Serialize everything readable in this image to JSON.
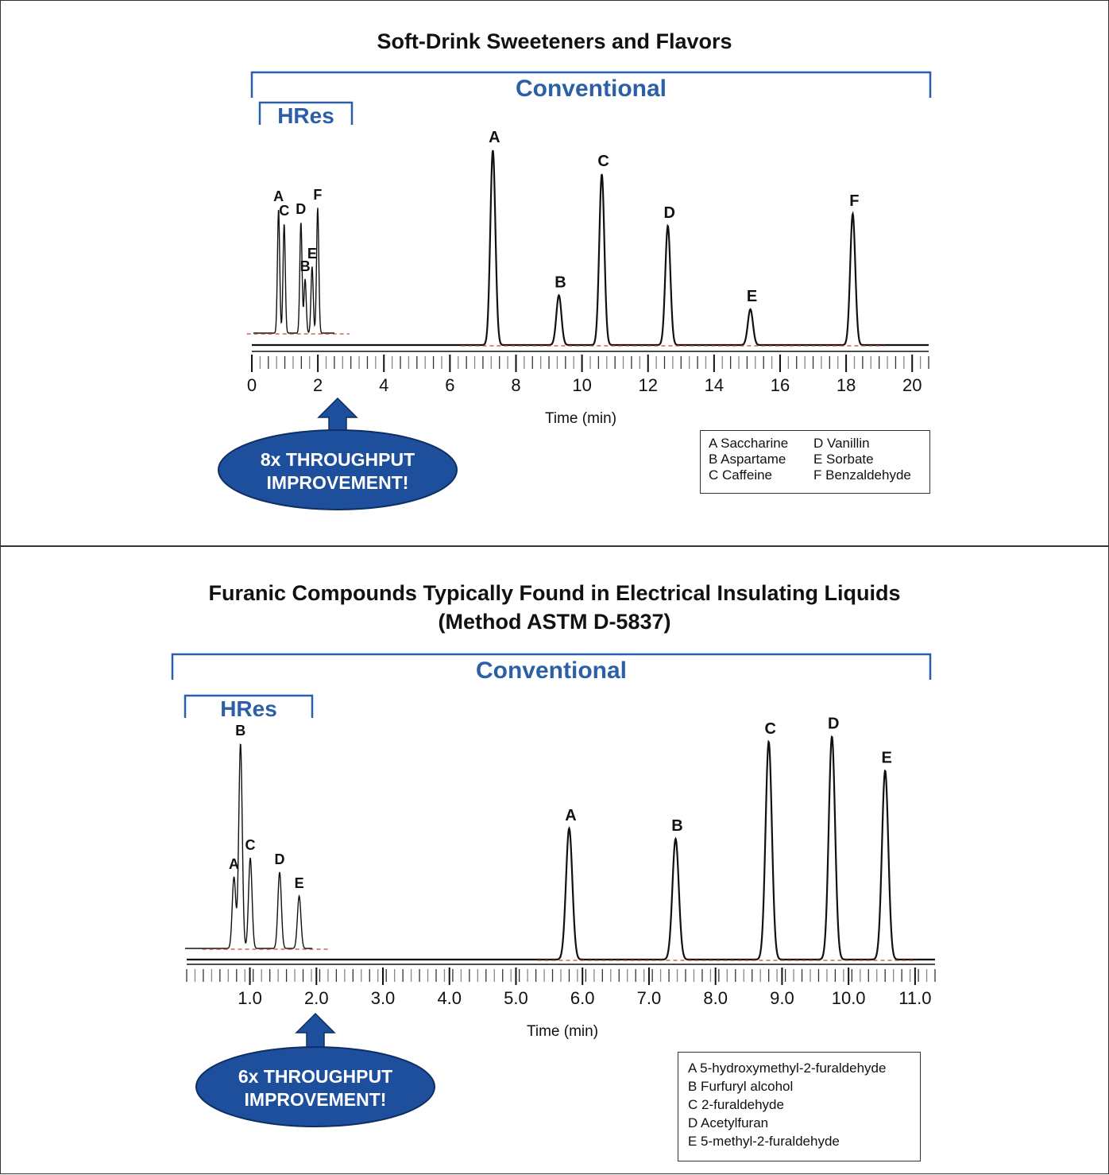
{
  "chart_data": [
    {
      "type": "line",
      "title": "Soft-Drink Sweeteners and Flavors",
      "xlabel": "Time (min)",
      "ylabel": "",
      "xlim": [
        0,
        20.5
      ],
      "x_ticks": [
        "0",
        "2",
        "4",
        "6",
        "8",
        "10",
        "12",
        "14",
        "16",
        "18",
        "20"
      ],
      "brackets": {
        "conventional": "Conventional",
        "hres": "HRes"
      },
      "series": [
        {
          "name": "Conventional",
          "peaks": [
            {
              "label": "A",
              "x": 7.3,
              "height": 0.98
            },
            {
              "label": "B",
              "x": 9.3,
              "height": 0.25
            },
            {
              "label": "C",
              "x": 10.6,
              "height": 0.86
            },
            {
              "label": "D",
              "x": 12.6,
              "height": 0.6
            },
            {
              "label": "E",
              "x": 15.1,
              "height": 0.18
            },
            {
              "label": "F",
              "x": 18.2,
              "height": 0.66
            }
          ]
        },
        {
          "name": "HRes",
          "peaks": [
            {
              "label": "A",
              "x": 0.9,
              "height": 0.78
            },
            {
              "label": "C",
              "x": 1.1,
              "height": 0.69
            },
            {
              "label": "D",
              "x": 1.7,
              "height": 0.7
            },
            {
              "label": "B",
              "x": 1.85,
              "height": 0.34
            },
            {
              "label": "E",
              "x": 2.1,
              "height": 0.42
            },
            {
              "label": "F",
              "x": 2.3,
              "height": 0.79
            }
          ]
        }
      ],
      "callout": [
        "8x THROUGHPUT",
        "IMPROVEMENT!"
      ],
      "legend_rows": [
        [
          "A Saccharine",
          "D Vanillin"
        ],
        [
          "B Aspartame",
          "E Sorbate"
        ],
        [
          "C Caffeine",
          "F Benzaldehyde"
        ]
      ]
    },
    {
      "type": "line",
      "title": "Furanic Compounds Typically Found in Electrical Insulating Liquids",
      "subtitle": "(Method ASTM D-5837)",
      "xlabel": "Time (min)",
      "ylabel": "",
      "xlim": [
        0.05,
        11.3
      ],
      "x_ticks": [
        "1.0",
        "2.0",
        "3.0",
        "4.0",
        "5.0",
        "6.0",
        "7.0",
        "8.0",
        "9.0",
        "10.0",
        "11.0"
      ],
      "brackets": {
        "conventional": "Conventional",
        "hres": "HRes"
      },
      "series": [
        {
          "name": "Conventional",
          "peaks": [
            {
              "label": "A",
              "x": 5.8,
              "height": 0.5
            },
            {
              "label": "B",
              "x": 7.4,
              "height": 0.46
            },
            {
              "label": "C",
              "x": 8.8,
              "height": 0.83
            },
            {
              "label": "D",
              "x": 9.75,
              "height": 0.85
            },
            {
              "label": "E",
              "x": 10.55,
              "height": 0.72
            }
          ]
        },
        {
          "name": "HRes",
          "peaks": [
            {
              "label": "A",
              "x": 0.8,
              "height": 0.3
            },
            {
              "label": "B",
              "x": 0.9,
              "height": 0.86
            },
            {
              "label": "C",
              "x": 1.05,
              "height": 0.38
            },
            {
              "label": "D",
              "x": 1.5,
              "height": 0.32
            },
            {
              "label": "E",
              "x": 1.8,
              "height": 0.22
            }
          ]
        }
      ],
      "callout": [
        "6x THROUGHPUT",
        "IMPROVEMENT!"
      ],
      "legend_rows": [
        [
          "A 5-hydroxymethyl-2-furaldehyde"
        ],
        [
          "B Furfuryl alcohol"
        ],
        [
          "C 2-furaldehyde"
        ],
        [
          "D Acetylfuran"
        ],
        [
          "E 5-methyl-2-furaldehyde"
        ]
      ]
    }
  ],
  "colors": {
    "bracket": "#2b5fa8",
    "callout_fill": "#1d4f9c",
    "callout_text": "#ffffff",
    "trace": "#111111",
    "baseline_marks": "#c8432e"
  }
}
